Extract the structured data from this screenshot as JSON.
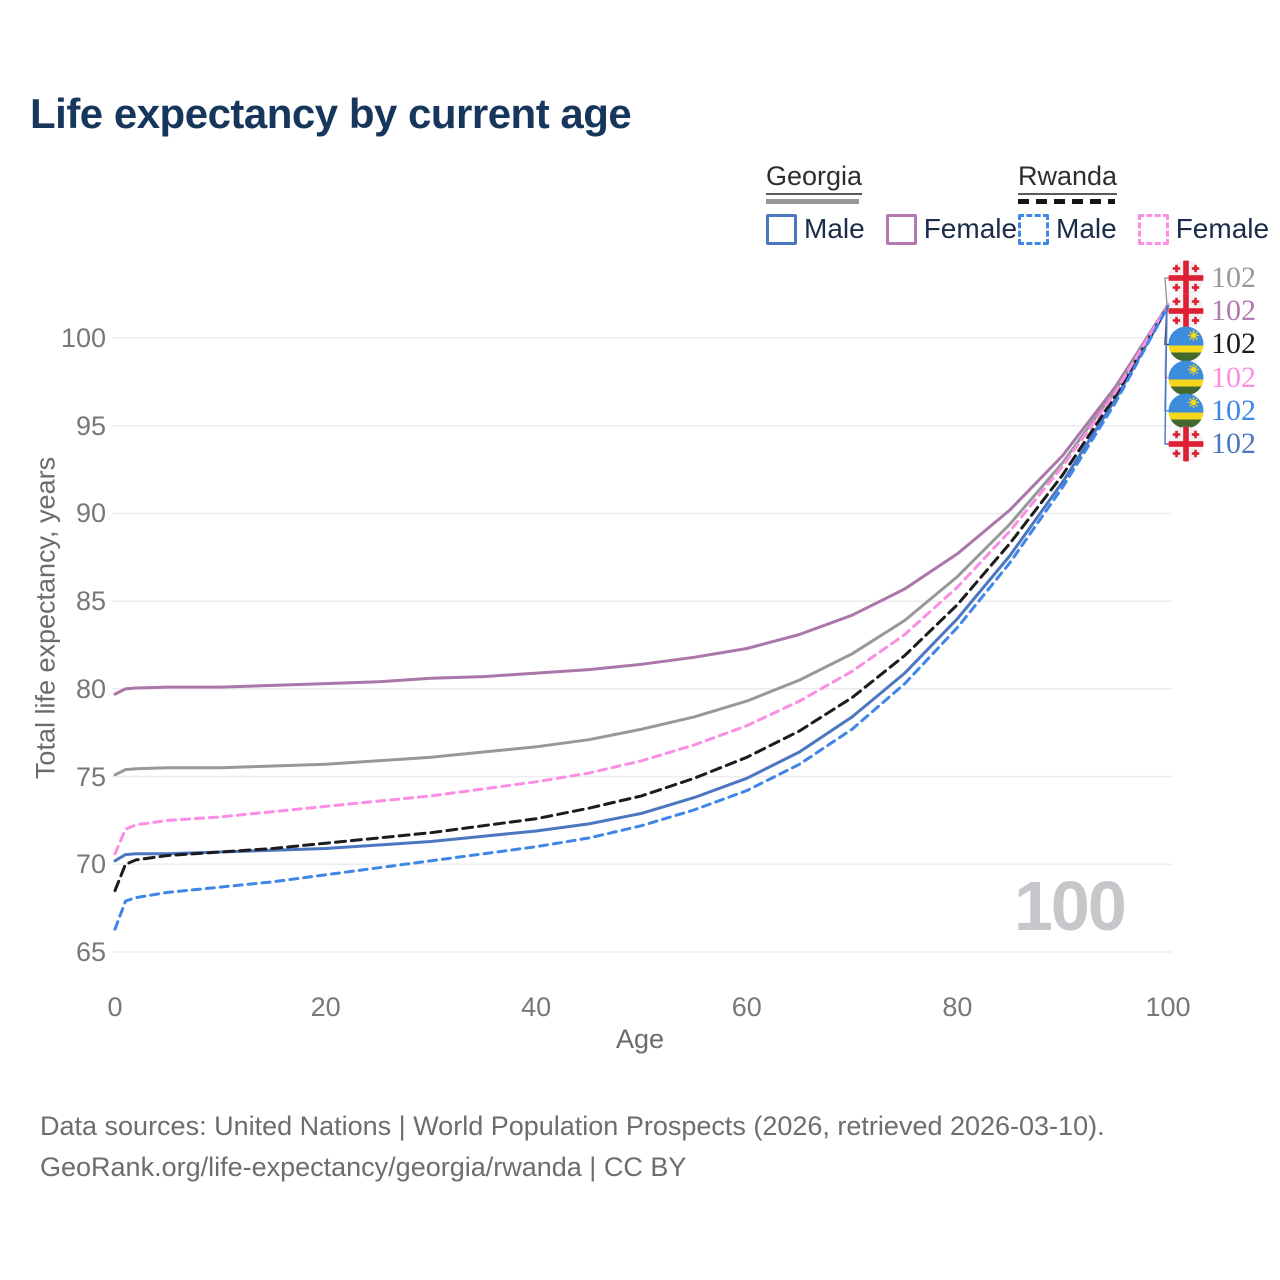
{
  "title": "Life expectancy by current age",
  "legend": {
    "groups": [
      {
        "name": "Georgia",
        "line_style": "solid",
        "line_color": "#97989a",
        "items": [
          {
            "label": "Male",
            "color": "#4b77c0"
          },
          {
            "label": "Female",
            "color": "#b278af"
          }
        ]
      },
      {
        "name": "Rwanda",
        "line_style": "dashed",
        "line_color": "#151515",
        "items": [
          {
            "label": "Male",
            "color": "#3e86e8"
          },
          {
            "label": "Female",
            "color": "#fb8de5"
          }
        ]
      }
    ]
  },
  "watermark": "100",
  "chart_data": {
    "type": "line",
    "title": "Life expectancy by current age",
    "xlabel": "Age",
    "ylabel": "Total life expectancy, years",
    "xlim": [
      0,
      100
    ],
    "ylim": [
      63.5,
      103.5
    ],
    "xticks": [
      0,
      20,
      40,
      60,
      80,
      100
    ],
    "yticks": [
      65,
      70,
      75,
      80,
      85,
      90,
      95,
      100
    ],
    "grid": "horizontal",
    "legend_position": "top-right",
    "x": [
      0,
      1,
      2,
      5,
      10,
      15,
      20,
      25,
      30,
      35,
      40,
      45,
      50,
      55,
      60,
      65,
      70,
      75,
      80,
      85,
      90,
      95,
      100
    ],
    "series": [
      {
        "id": "georgia-female",
        "country": "Georgia",
        "sex": "Female",
        "color": "#ab76a9",
        "dash": false,
        "values": [
          79.7,
          80.0,
          80.05,
          80.1,
          80.1,
          80.2,
          80.3,
          80.4,
          80.6,
          80.7,
          80.9,
          81.1,
          81.4,
          81.8,
          82.3,
          83.1,
          84.2,
          85.7,
          87.7,
          90.2,
          93.3,
          97.2,
          101.9
        ]
      },
      {
        "id": "georgia-both",
        "country": "Georgia",
        "sex": "Both",
        "color": "#97989a",
        "dash": false,
        "values": [
          75.1,
          75.4,
          75.45,
          75.5,
          75.5,
          75.6,
          75.7,
          75.9,
          76.1,
          76.4,
          76.7,
          77.1,
          77.7,
          78.4,
          79.3,
          80.5,
          82.0,
          83.9,
          86.4,
          89.4,
          92.9,
          97.0,
          101.9
        ]
      },
      {
        "id": "georgia-male",
        "country": "Georgia",
        "sex": "Male",
        "color": "#4b77c0",
        "dash": false,
        "values": [
          70.2,
          70.55,
          70.6,
          70.6,
          70.7,
          70.8,
          70.9,
          71.1,
          71.3,
          71.6,
          71.9,
          72.3,
          72.9,
          73.8,
          74.9,
          76.4,
          78.4,
          80.9,
          84.0,
          87.6,
          91.8,
          96.5,
          101.8
        ]
      },
      {
        "id": "rwanda-both",
        "country": "Rwanda",
        "sex": "Both",
        "color": "#1c1c1e",
        "dash": true,
        "values": [
          68.5,
          70.0,
          70.25,
          70.5,
          70.7,
          70.9,
          71.2,
          71.5,
          71.8,
          72.2,
          72.6,
          73.2,
          73.9,
          74.9,
          76.1,
          77.6,
          79.5,
          81.9,
          84.8,
          88.3,
          92.2,
          96.7,
          101.8
        ]
      },
      {
        "id": "rwanda-female",
        "country": "Rwanda",
        "sex": "Female",
        "color": "#fb8de5",
        "dash": true,
        "values": [
          70.6,
          72.0,
          72.25,
          72.5,
          72.7,
          73.0,
          73.3,
          73.6,
          73.9,
          74.3,
          74.7,
          75.2,
          75.9,
          76.8,
          77.9,
          79.3,
          81.0,
          83.1,
          85.8,
          89.0,
          92.7,
          96.9,
          101.9
        ]
      },
      {
        "id": "rwanda-male",
        "country": "Rwanda",
        "sex": "Male",
        "color": "#3e86e8",
        "dash": true,
        "values": [
          66.3,
          67.9,
          68.1,
          68.4,
          68.7,
          69.0,
          69.4,
          69.8,
          70.2,
          70.6,
          71.0,
          71.5,
          72.2,
          73.1,
          74.2,
          75.7,
          77.7,
          80.3,
          83.5,
          87.2,
          91.5,
          96.3,
          101.8
        ]
      }
    ]
  },
  "end_labels": [
    {
      "country": "Georgia",
      "series": "Georgia Both",
      "value": "102",
      "color": "#98989a"
    },
    {
      "country": "Georgia",
      "series": "Georgia Female",
      "value": "102",
      "color": "#b278af"
    },
    {
      "country": "Rwanda",
      "series": "Rwanda Both",
      "value": "102",
      "color": "#1b1b1e"
    },
    {
      "country": "Rwanda",
      "series": "Rwanda Female",
      "value": "102",
      "color": "#fb8de5"
    },
    {
      "country": "Rwanda",
      "series": "Rwanda Male",
      "value": "102",
      "color": "#3e86e8"
    },
    {
      "country": "Georgia",
      "series": "Georgia Male",
      "value": "102",
      "color": "#4b77c0"
    }
  ],
  "footer": {
    "line1": "Data sources: United Nations | World Population Prospects (2026, retrieved 2026-03-10).",
    "line2": "GeoRank.org/life-expectancy/georgia/rwanda | CC BY"
  }
}
